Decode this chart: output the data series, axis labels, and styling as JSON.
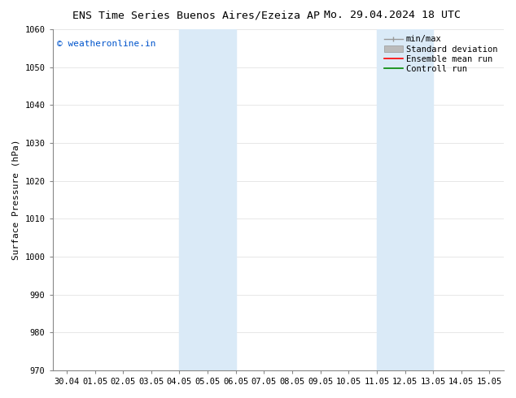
{
  "title_left": "ENS Time Series Buenos Aires/Ezeiza AP",
  "title_right": "Mo. 29.04.2024 18 UTC",
  "ylabel": "Surface Pressure (hPa)",
  "ylim": [
    970,
    1060
  ],
  "yticks": [
    970,
    980,
    990,
    1000,
    1010,
    1020,
    1030,
    1040,
    1050,
    1060
  ],
  "xtick_labels": [
    "30.04",
    "01.05",
    "02.05",
    "03.05",
    "04.05",
    "05.05",
    "06.05",
    "07.05",
    "08.05",
    "09.05",
    "10.05",
    "11.05",
    "12.05",
    "13.05",
    "14.05",
    "15.05"
  ],
  "xlim": [
    -0.5,
    15.5
  ],
  "shaded_regions": [
    {
      "xmin": 4.0,
      "xmax": 6.0,
      "color": "#daeaf7"
    },
    {
      "xmin": 11.0,
      "xmax": 13.0,
      "color": "#daeaf7"
    }
  ],
  "watermark_text": "© weatheronline.in",
  "watermark_color": "#0055cc",
  "legend_labels": [
    "min/max",
    "Standard deviation",
    "Ensemble mean run",
    "Controll run"
  ],
  "legend_colors_line": [
    "#999999",
    "#bbbbbb",
    "#ff0000",
    "#008800"
  ],
  "background_color": "#ffffff",
  "title_fontsize": 9.5,
  "tick_fontsize": 7.5,
  "ylabel_fontsize": 8,
  "legend_fontsize": 7.5,
  "watermark_fontsize": 8
}
